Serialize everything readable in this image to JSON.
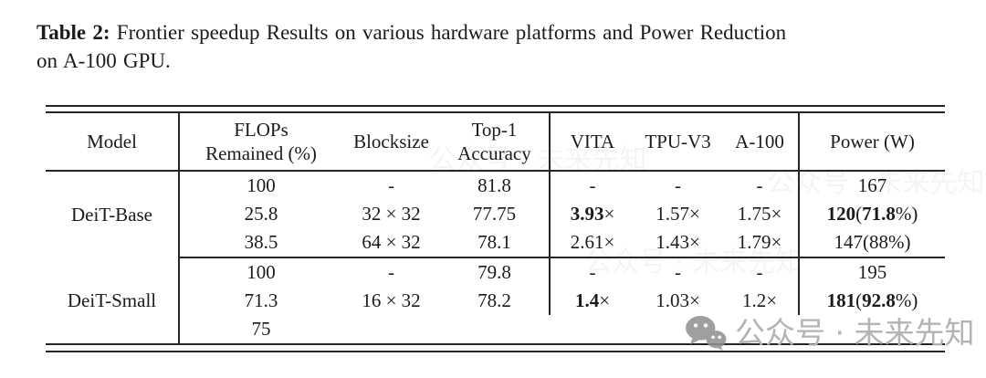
{
  "caption": {
    "label": "Table 2:",
    "line1": "Frontier speedup Results on various hardware platforms and Power Reduction",
    "line2": "on A-100 GPU."
  },
  "table": {
    "headers": [
      [
        "Model"
      ],
      [
        "FLOPs",
        "Remained (%)"
      ],
      [
        "Blocksize"
      ],
      [
        "Top-1",
        "Accuracy"
      ],
      [
        "VITA"
      ],
      [
        "TPU-V3"
      ],
      [
        "A-100"
      ],
      [
        "Power (W)"
      ]
    ],
    "groups": [
      {
        "model": "DeiT-Base",
        "rows": [
          [
            "100",
            "-",
            "81.8",
            "-",
            "-",
            "-",
            "167"
          ],
          [
            "25.8",
            "32 × 32",
            "77.75",
            [
              [
                "3.93",
                1
              ],
              [
                "×",
                0
              ]
            ],
            "1.57×",
            "1.75×",
            [
              [
                "120",
                1
              ],
              [
                "(",
                0
              ],
              [
                "71.8",
                1
              ],
              [
                "%)",
                0
              ]
            ]
          ],
          [
            "38.5",
            "64 × 32",
            "78.1",
            "2.61×",
            "1.43×",
            "1.79×",
            "147(88%)"
          ]
        ]
      },
      {
        "model": "DeiT-Small",
        "rows": [
          [
            "100",
            "-",
            "79.8",
            "-",
            "-",
            "-",
            "195"
          ],
          [
            "71.3",
            "16 × 32",
            "78.2",
            [
              [
                "1.4",
                1
              ],
              [
                "×",
                0
              ]
            ],
            "1.03×",
            "1.2×",
            [
              [
                "181",
                1
              ],
              [
                "(",
                0
              ],
              [
                "92.8",
                1
              ],
              [
                "%)",
                0
              ]
            ]
          ],
          [
            "75",
            "",
            "",
            "",
            "",
            "",
            ""
          ]
        ]
      }
    ]
  },
  "watermark": {
    "icon": "wechat-icon",
    "text": "公众号 · 未来先知",
    "color": "#b3b3b3"
  },
  "colors": {
    "background": "#ffffff",
    "text": "#1b1b1b",
    "rule": "#262626",
    "watermark": "#b3b3b3"
  }
}
